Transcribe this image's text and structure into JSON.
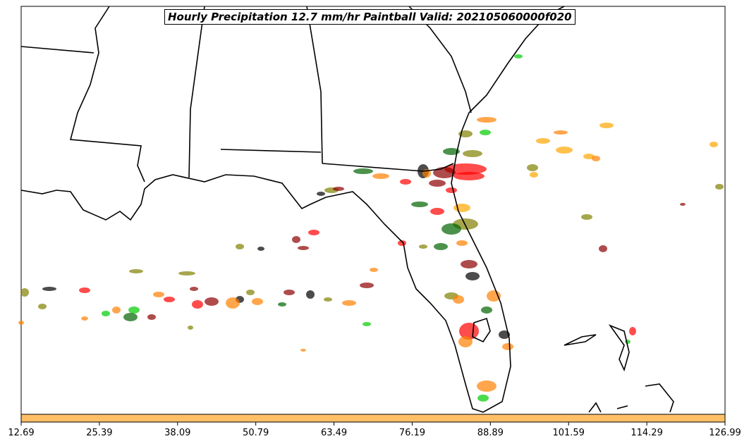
{
  "title": "Hourly Precipitation 12.7 mm/hr Paintball Valid: 202105060000f020",
  "colorbar": {
    "color": "#ffbf66",
    "ticks": [
      "12.69",
      "25.39",
      "38.09",
      "50.79",
      "63.49",
      "76.19",
      "88.89",
      "101.59",
      "114.29",
      "126.99"
    ]
  },
  "member_colors": [
    "#ff0000",
    "#ff8000",
    "#00cc00",
    "#8b0000",
    "#808000",
    "#006400",
    "#000000",
    "#ffa500",
    "#cc3333"
  ]
}
